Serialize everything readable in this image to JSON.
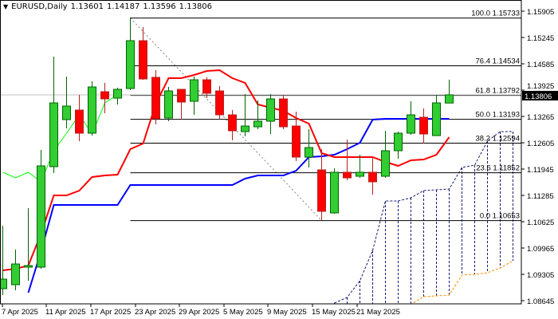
{
  "header": {
    "symbol_timeframe": "EURUSD,Daily",
    "open": "1.13601",
    "high": "1.14187",
    "low": "1.13596",
    "close": "1.13806"
  },
  "chart_data": {
    "type": "candlestick",
    "title": "EURUSD,Daily",
    "ylim": [
      1.0858,
      1.1619
    ],
    "y_ticks": [
      "1.15905",
      "1.15245",
      "1.14585",
      "1.13925",
      "1.13265",
      "1.12605",
      "1.11945",
      "1.11285",
      "1.10625",
      "1.09965",
      "1.09305",
      "1.08645"
    ],
    "x_tick_labels": [
      "7 Apr 2025",
      "11 Apr 2025",
      "17 Apr 2025",
      "23 Apr 2025",
      "29 Apr 2025",
      "5 May 2025",
      "9 May 2025",
      "15 May 2025",
      "21 May 2025"
    ],
    "current_price": "1.13806",
    "grid": false,
    "colors": {
      "bull": "#32cd32",
      "bear": "#ff0000",
      "bull_border": "#006400",
      "bear_border": "#b22222",
      "tenkan": "#ff0000",
      "kijun": "#0000ff",
      "chikou": "#00ff00",
      "span_a": "#191970",
      "span_b": "#ff8c00",
      "fib": "#000000"
    },
    "candles": [
      [
        1.08945,
        1.10525,
        1.08785,
        1.09185
      ],
      [
        1.09045,
        1.09925,
        1.08905,
        1.09565
      ],
      [
        1.09485,
        1.10965,
        1.09145,
        1.09525
      ],
      [
        1.09485,
        1.12425,
        1.09445,
        1.12025
      ],
      [
        1.12005,
        1.14765,
        1.11845,
        1.13605
      ],
      [
        1.13185,
        1.14265,
        1.12965,
        1.13525
      ],
      [
        1.13425,
        1.13805,
        1.12645,
        1.12845
      ],
      [
        1.12845,
        1.14145,
        1.12785,
        1.14005
      ],
      [
        1.13885,
        1.14105,
        1.13345,
        1.13705
      ],
      [
        1.13725,
        1.13985,
        1.13565,
        1.13945
      ],
      [
        1.13965,
        1.15745,
        1.13925,
        1.15165
      ],
      [
        1.15165,
        1.15505,
        1.14185,
        1.14205
      ],
      [
        1.14245,
        1.14425,
        1.13065,
        1.13205
      ],
      [
        1.13225,
        1.14005,
        1.13145,
        1.13905
      ],
      [
        1.13945,
        1.13945,
        1.13185,
        1.13625
      ],
      [
        1.13645,
        1.14265,
        1.13305,
        1.14185
      ],
      [
        1.14185,
        1.14245,
        1.13725,
        1.13845
      ],
      [
        1.13905,
        1.14025,
        1.13185,
        1.13305
      ],
      [
        1.13305,
        1.13425,
        1.12665,
        1.12905
      ],
      [
        1.12885,
        1.13825,
        1.12765,
        1.13025
      ],
      [
        1.13005,
        1.13665,
        1.12945,
        1.13145
      ],
      [
        1.13145,
        1.13825,
        1.12825,
        1.13705
      ],
      [
        1.13705,
        1.13805,
        1.12945,
        1.13005
      ],
      [
        1.13025,
        1.13385,
        1.12145,
        1.12245
      ],
      [
        1.12245,
        1.12945,
        1.11985,
        1.12485
      ],
      [
        1.11925,
        1.12445,
        1.10665,
        1.10885
      ],
      [
        1.10845,
        1.11965,
        1.10825,
        1.11865
      ],
      [
        1.11865,
        1.12685,
        1.11665,
        1.11725
      ],
      [
        1.11765,
        1.12305,
        1.11725,
        1.11865
      ],
      [
        1.11865,
        1.12245,
        1.11305,
        1.11625
      ],
      [
        1.11765,
        1.12905,
        1.11725,
        1.12405
      ],
      [
        1.12405,
        1.12885,
        1.12205,
        1.12845
      ],
      [
        1.12845,
        1.13645,
        1.12805,
        1.13305
      ],
      [
        1.13245,
        1.13465,
        1.12585,
        1.12825
      ],
      [
        1.12785,
        1.13805,
        1.12785,
        1.13605
      ],
      [
        1.13601,
        1.14187,
        1.13596,
        1.13806
      ]
    ],
    "candle_fields": [
      "open",
      "high",
      "low",
      "close"
    ],
    "tenkan": [
      1.09405,
      1.09445,
      1.09525,
      1.10325,
      1.11285,
      1.11285,
      1.11405,
      1.11745,
      1.11785,
      1.11805,
      1.12445,
      1.12585,
      1.13585,
      1.14225,
      1.14225,
      1.14305,
      1.14405,
      1.14425,
      1.14225,
      1.14105,
      1.13565,
      1.13485,
      1.13405,
      1.13225,
      1.13085,
      1.12345,
      1.12245,
      1.12245,
      1.12245,
      1.12245,
      1.12125,
      1.12025,
      1.12165,
      1.12185,
      1.12305,
      1.12745
    ],
    "kijun": [
      null,
      null,
      1.08845,
      1.09885,
      1.11045,
      1.11045,
      1.11045,
      1.11045,
      1.11045,
      1.11045,
      1.11545,
      1.11545,
      1.11545,
      1.11545,
      1.11545,
      1.11545,
      1.11545,
      1.11545,
      1.11545,
      1.11705,
      1.11785,
      1.11785,
      1.11785,
      1.11905,
      1.12245,
      1.12265,
      1.12305,
      1.12445,
      1.12605,
      1.13185,
      1.13205,
      1.13205,
      1.13205,
      1.13205,
      1.13205,
      1.13205
    ],
    "chikou_shift": 26,
    "span_a": [
      null,
      null,
      null,
      null,
      null,
      null,
      null,
      null,
      null,
      null,
      null,
      null,
      null,
      null,
      null,
      null,
      null,
      null,
      null,
      null,
      null,
      null,
      null,
      null,
      null,
      null,
      1.08585,
      1.08725,
      1.09145,
      1.09905,
      1.11145,
      1.11145,
      1.11225,
      1.11405,
      1.11425,
      1.11445,
      1.11985,
      1.12045,
      1.12645,
      1.12885,
      1.12885
    ],
    "span_b": [
      null,
      null,
      null,
      null,
      null,
      null,
      null,
      null,
      null,
      null,
      null,
      null,
      null,
      null,
      null,
      null,
      null,
      null,
      null,
      null,
      null,
      null,
      null,
      null,
      null,
      null,
      1.085,
      1.085,
      1.085,
      1.085,
      1.085,
      1.085,
      1.0855,
      1.08745,
      1.08765,
      1.08785,
      1.09285,
      1.09305,
      1.09345,
      1.09465,
      1.09645
    ],
    "fibonacci": {
      "high": 1.15733,
      "low": 1.10653,
      "levels": [
        {
          "label": "100.0 1.15733",
          "price": 1.15733
        },
        {
          "label": "76.4 1.14534",
          "price": 1.14534
        },
        {
          "label": "61.8 1.13792",
          "price": 1.13792
        },
        {
          "label": "50.0 1.13193",
          "price": 1.13193
        },
        {
          "label": "38.2 1.12594",
          "price": 1.12594
        },
        {
          "label": "23.6 1.11852",
          "price": 1.11852
        },
        {
          "label": "0.0 1.10653",
          "price": 1.10653
        }
      ]
    }
  }
}
